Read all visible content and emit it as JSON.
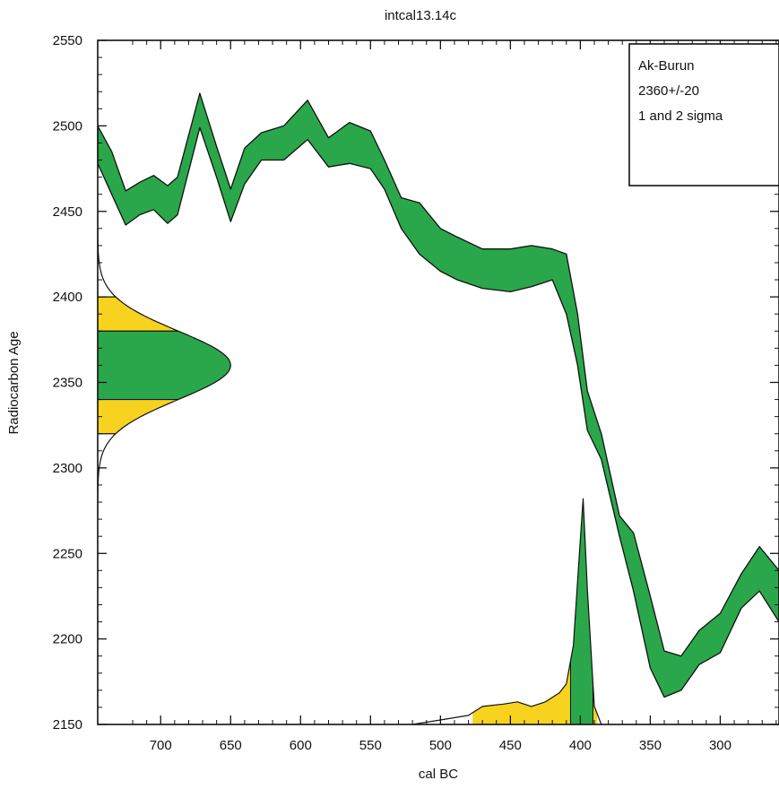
{
  "chart_data": {
    "type": "area",
    "title": "intcal13.14c",
    "xlabel": "cal BC",
    "ylabel": "Radiocarbon Age",
    "xlim": [
      745,
      258
    ],
    "ylim": [
      2150,
      2550
    ],
    "x_reversed": true,
    "x_ticks": [
      700,
      650,
      600,
      550,
      500,
      450,
      400,
      350,
      300
    ],
    "y_ticks": [
      2150,
      2200,
      2250,
      2300,
      2350,
      2400,
      2450,
      2500,
      2550
    ],
    "grid": false,
    "legend": {
      "placement": "top-right",
      "lines": [
        "Ak-Burun",
        "2360+/-20",
        "1 and 2 sigma"
      ]
    },
    "colors": {
      "calibration_band": "#2aa74a",
      "one_sigma": "#2aa74a",
      "two_sigma": "#f7d21f",
      "outline": "#111111"
    },
    "calibration_curve": {
      "name": "intcal13",
      "points": [
        {
          "x": 745,
          "upper": 2500,
          "lower": 2478
        },
        {
          "x": 735,
          "upper": 2485,
          "lower": 2460
        },
        {
          "x": 725,
          "upper": 2462,
          "lower": 2442
        },
        {
          "x": 715,
          "upper": 2467,
          "lower": 2448
        },
        {
          "x": 705,
          "upper": 2471,
          "lower": 2451
        },
        {
          "x": 695,
          "upper": 2465,
          "lower": 2443
        },
        {
          "x": 688,
          "upper": 2470,
          "lower": 2448
        },
        {
          "x": 672,
          "upper": 2519,
          "lower": 2499
        },
        {
          "x": 660,
          "upper": 2488,
          "lower": 2470
        },
        {
          "x": 650,
          "upper": 2463,
          "lower": 2444
        },
        {
          "x": 640,
          "upper": 2487,
          "lower": 2466
        },
        {
          "x": 628,
          "upper": 2496,
          "lower": 2480
        },
        {
          "x": 612,
          "upper": 2500,
          "lower": 2480
        },
        {
          "x": 595,
          "upper": 2515,
          "lower": 2492
        },
        {
          "x": 580,
          "upper": 2493,
          "lower": 2476
        },
        {
          "x": 565,
          "upper": 2502,
          "lower": 2478
        },
        {
          "x": 550,
          "upper": 2497,
          "lower": 2475
        },
        {
          "x": 540,
          "upper": 2480,
          "lower": 2463
        },
        {
          "x": 528,
          "upper": 2458,
          "lower": 2440
        },
        {
          "x": 515,
          "upper": 2455,
          "lower": 2425
        },
        {
          "x": 500,
          "upper": 2440,
          "lower": 2415
        },
        {
          "x": 488,
          "upper": 2435,
          "lower": 2410
        },
        {
          "x": 470,
          "upper": 2428,
          "lower": 2405
        },
        {
          "x": 450,
          "upper": 2428,
          "lower": 2403
        },
        {
          "x": 435,
          "upper": 2430,
          "lower": 2406
        },
        {
          "x": 420,
          "upper": 2428,
          "lower": 2410
        },
        {
          "x": 410,
          "upper": 2425,
          "lower": 2390
        },
        {
          "x": 402,
          "upper": 2390,
          "lower": 2360
        },
        {
          "x": 395,
          "upper": 2345,
          "lower": 2322
        },
        {
          "x": 385,
          "upper": 2320,
          "lower": 2305
        },
        {
          "x": 372,
          "upper": 2272,
          "lower": 2260
        },
        {
          "x": 362,
          "upper": 2262,
          "lower": 2228
        },
        {
          "x": 350,
          "upper": 2225,
          "lower": 2183
        },
        {
          "x": 340,
          "upper": 2193,
          "lower": 2166
        },
        {
          "x": 328,
          "upper": 2190,
          "lower": 2170
        },
        {
          "x": 315,
          "upper": 2205,
          "lower": 2185
        },
        {
          "x": 300,
          "upper": 2215,
          "lower": 2192
        },
        {
          "x": 285,
          "upper": 2238,
          "lower": 2218
        },
        {
          "x": 272,
          "upper": 2254,
          "lower": 2228
        },
        {
          "x": 258,
          "upper": 2240,
          "lower": 2210
        }
      ]
    },
    "radiocarbon_date": {
      "mean": 2360,
      "error": 20,
      "one_sigma": [
        2340,
        2380
      ],
      "two_sigma": [
        2320,
        2400
      ],
      "peak_x": 650
    },
    "calibrated_distribution": {
      "points": [
        {
          "x": 520,
          "density": 0.0
        },
        {
          "x": 500,
          "density": 0.02
        },
        {
          "x": 480,
          "density": 0.04
        },
        {
          "x": 470,
          "density": 0.08
        },
        {
          "x": 455,
          "density": 0.09
        },
        {
          "x": 445,
          "density": 0.1
        },
        {
          "x": 435,
          "density": 0.08
        },
        {
          "x": 425,
          "density": 0.1
        },
        {
          "x": 415,
          "density": 0.14
        },
        {
          "x": 410,
          "density": 0.18
        },
        {
          "x": 405,
          "density": 0.35
        },
        {
          "x": 400,
          "density": 0.82
        },
        {
          "x": 398,
          "density": 1.0
        },
        {
          "x": 395,
          "density": 0.6
        },
        {
          "x": 390,
          "density": 0.08
        },
        {
          "x": 385,
          "density": 0.0
        }
      ],
      "one_sigma_range": [
        407,
        391
      ],
      "two_sigma_range": [
        477,
        388
      ]
    }
  }
}
